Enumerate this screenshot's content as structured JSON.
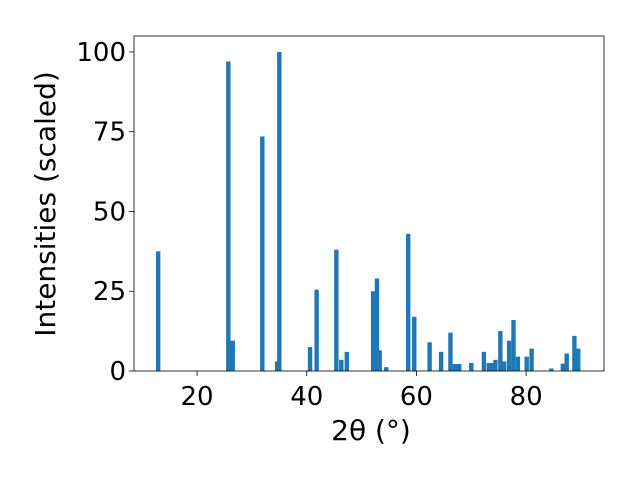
{
  "chart_data": {
    "type": "bar",
    "title": "",
    "xlabel": "2θ (°)",
    "ylabel": "Intensities (scaled)",
    "xlim": [
      8.5,
      94.2
    ],
    "ylim": [
      0,
      105
    ],
    "x_ticks": [
      20,
      40,
      60,
      80
    ],
    "y_ticks": [
      0,
      25,
      50,
      75,
      100
    ],
    "grid": false,
    "bar_color": "#1f77b4",
    "bar_width": 0.8,
    "points": [
      {
        "x": 12.9,
        "y": 37.5
      },
      {
        "x": 25.7,
        "y": 97
      },
      {
        "x": 26.5,
        "y": 9.5
      },
      {
        "x": 31.9,
        "y": 73.5
      },
      {
        "x": 34.6,
        "y": 3
      },
      {
        "x": 35.0,
        "y": 100
      },
      {
        "x": 40.6,
        "y": 7.5
      },
      {
        "x": 41.8,
        "y": 25.5
      },
      {
        "x": 45.4,
        "y": 38
      },
      {
        "x": 46.3,
        "y": 3.5
      },
      {
        "x": 47.3,
        "y": 6
      },
      {
        "x": 52.1,
        "y": 25
      },
      {
        "x": 52.8,
        "y": 29
      },
      {
        "x": 53.3,
        "y": 6.5
      },
      {
        "x": 54.5,
        "y": 1.2
      },
      {
        "x": 58.5,
        "y": 43
      },
      {
        "x": 59.6,
        "y": 17
      },
      {
        "x": 62.4,
        "y": 9
      },
      {
        "x": 64.5,
        "y": 6
      },
      {
        "x": 66.2,
        "y": 12
      },
      {
        "x": 67.0,
        "y": 2.2
      },
      {
        "x": 67.8,
        "y": 2.2
      },
      {
        "x": 70.0,
        "y": 2.5
      },
      {
        "x": 72.3,
        "y": 6
      },
      {
        "x": 73.2,
        "y": 2.5
      },
      {
        "x": 73.9,
        "y": 2.5
      },
      {
        "x": 74.4,
        "y": 3.5
      },
      {
        "x": 75.3,
        "y": 12.5
      },
      {
        "x": 76.0,
        "y": 3
      },
      {
        "x": 76.9,
        "y": 9.5
      },
      {
        "x": 77.7,
        "y": 16
      },
      {
        "x": 78.5,
        "y": 4.5
      },
      {
        "x": 80.1,
        "y": 4.5
      },
      {
        "x": 81.0,
        "y": 7
      },
      {
        "x": 84.6,
        "y": 0.8
      },
      {
        "x": 86.7,
        "y": 2.3
      },
      {
        "x": 87.4,
        "y": 5.5
      },
      {
        "x": 88.8,
        "y": 11
      },
      {
        "x": 89.5,
        "y": 7
      }
    ]
  }
}
